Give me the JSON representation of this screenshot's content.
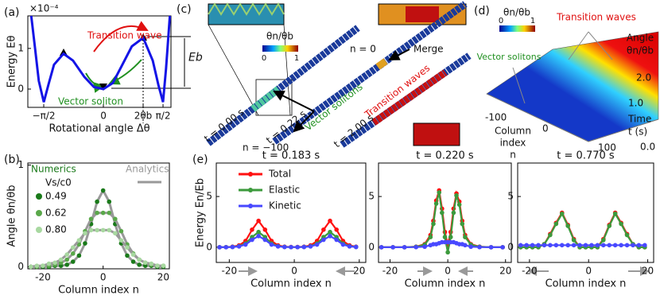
{
  "chart_data": [
    {
      "type": "line",
      "panel_label": "(a)",
      "ylabel": "Energy Eθ",
      "xlabel": "Rotational angle Δθ",
      "offset_text": "×10⁻⁴",
      "x": [
        -1.9,
        -1.8,
        -1.7,
        -1.57,
        -1.45,
        -1.3,
        -1.05,
        -0.8,
        -0.5,
        -0.25,
        0,
        0.25,
        0.5,
        0.75,
        1.05,
        1.3,
        1.45,
        1.57,
        1.65,
        1.75
      ],
      "series": [
        {
          "color": "#1414e6",
          "values": [
            1.8,
            1.0,
            0.2,
            -0.32,
            0.1,
            0.6,
            0.87,
            0.7,
            0.3,
            0.05,
            0,
            0.15,
            0.6,
            1.05,
            1.26,
            0.7,
            0.1,
            -0.32,
            0.5,
            1.8
          ]
        }
      ],
      "xlim": [
        -1.99,
        1.78
      ],
      "ylim": [
        -0.45,
        1.8
      ],
      "xticks": [
        {
          "value": -1.571,
          "label": "−π/2"
        },
        0,
        {
          "value": 1.047,
          "label": "2θb"
        },
        {
          "value": 1.571,
          "label": "π/2"
        }
      ],
      "yticks": [
        0,
        1
      ],
      "annotations": {
        "transition": "Transition wave",
        "soliton": "Vector soliton",
        "barrier": "Eb"
      }
    },
    {
      "type": "line",
      "panel_label": "(b)",
      "ylabel": "Angle θn/θb",
      "xlabel": "Column index n",
      "markers": true,
      "legend_title": "Vs/c0",
      "numerics_label": "Numerics",
      "analytics_label": "Analytics",
      "line_color": "#999999",
      "x": [
        -24,
        -22,
        -20,
        -18,
        -16,
        -14,
        -12,
        -10,
        -8,
        -6,
        -4,
        -2,
        0,
        2,
        4,
        6,
        8,
        10,
        12,
        14,
        16,
        18,
        20
      ],
      "series": [
        {
          "name": "0.49",
          "color": "#1a7a1a",
          "values": [
            0,
            0,
            0,
            0,
            0.01,
            0.01,
            0.02,
            0.05,
            0.11,
            0.23,
            0.42,
            0.64,
            0.75,
            0.64,
            0.42,
            0.23,
            0.11,
            0.05,
            0.02,
            0.01,
            0.01,
            0,
            0
          ]
        },
        {
          "name": "0.62",
          "color": "#5aa84a",
          "values": [
            0,
            0,
            0.01,
            0.01,
            0.02,
            0.04,
            0.07,
            0.13,
            0.22,
            0.35,
            0.47,
            0.53,
            0.53,
            0.53,
            0.47,
            0.35,
            0.22,
            0.13,
            0.07,
            0.04,
            0.02,
            0.01,
            0.01
          ]
        },
        {
          "name": "0.80",
          "color": "#a8d8a0",
          "values": [
            0,
            0.01,
            0.01,
            0.03,
            0.04,
            0.07,
            0.12,
            0.19,
            0.26,
            0.33,
            0.36,
            0.36,
            0.36,
            0.36,
            0.33,
            0.26,
            0.19,
            0.12,
            0.07,
            0.04,
            0.03,
            0.01,
            0.01
          ]
        }
      ],
      "xlim": [
        -25,
        22
      ],
      "ylim": [
        -0.02,
        1.02
      ],
      "xticks": [
        -20,
        0,
        20
      ],
      "yticks": [
        0,
        1
      ]
    },
    {
      "type": "line",
      "panel_label": "(e)",
      "title": "t = 0.183 s",
      "ylabel": "Energy En/Eb",
      "xlabel": "Column index n",
      "markers": true,
      "legend": true,
      "x": [
        -23,
        -21,
        -19,
        -17,
        -15,
        -13,
        -11,
        -9,
        -7,
        -5,
        -3,
        -1,
        1,
        3,
        5,
        7,
        9,
        11,
        13,
        15,
        17,
        19
      ],
      "series": [
        {
          "name": "Total",
          "color": "#ff1010",
          "values": [
            0,
            0.01,
            0.05,
            0.18,
            0.62,
            1.73,
            2.6,
            1.73,
            0.62,
            0.18,
            0.05,
            0.02,
            0.02,
            0.05,
            0.18,
            0.62,
            1.73,
            2.6,
            1.73,
            0.62,
            0.18,
            0.05
          ]
        },
        {
          "name": "Elastic",
          "color": "#3c9a3c",
          "values": [
            0,
            0.01,
            0.03,
            0.1,
            0.36,
            1.0,
            1.5,
            1.0,
            0.36,
            0.1,
            0.03,
            0.01,
            0.01,
            0.03,
            0.1,
            0.36,
            1.0,
            1.5,
            1.0,
            0.36,
            0.1,
            0.03
          ]
        },
        {
          "name": "Kinetic",
          "color": "#4848ff",
          "values": [
            0,
            0,
            0.02,
            0.08,
            0.26,
            0.73,
            1.1,
            0.73,
            0.26,
            0.08,
            0.02,
            0.01,
            0.01,
            0.02,
            0.08,
            0.26,
            0.73,
            1.1,
            0.73,
            0.26,
            0.08,
            0.02
          ]
        }
      ],
      "xlim": [
        -24,
        22
      ],
      "ylim": [
        -1.5,
        8.3
      ],
      "xticks": [
        -20,
        0,
        20
      ],
      "yticks": [
        0,
        5
      ]
    },
    {
      "type": "line",
      "title": "t = 0.220 s",
      "xlabel": "Column index n",
      "markers": true,
      "x": [
        -23,
        -19,
        -15,
        -11,
        -8,
        -6,
        -5,
        -4,
        -3,
        -2,
        -1,
        0,
        1,
        2,
        3,
        4,
        5,
        6,
        8,
        11,
        15,
        19
      ],
      "series": [
        {
          "name": "Total",
          "color": "#ff1010",
          "values": [
            0,
            0,
            0,
            0.05,
            0.3,
            1.2,
            2.6,
            4.6,
            5.6,
            3.8,
            1.5,
            0.2,
            1.5,
            3.8,
            5.3,
            4.5,
            2.6,
            1.2,
            0.3,
            0.05,
            0,
            0
          ]
        },
        {
          "name": "Elastic",
          "color": "#3c9a3c",
          "values": [
            0,
            0,
            0,
            0.04,
            0.25,
            1.0,
            2.3,
            4.3,
            5.4,
            3.4,
            1.0,
            -0.5,
            1.0,
            3.4,
            5.1,
            4.2,
            2.3,
            1.0,
            0.25,
            0.04,
            0,
            0
          ]
        },
        {
          "name": "Kinetic",
          "color": "#4848ff",
          "values": [
            0,
            0,
            0,
            0.01,
            0.05,
            0.2,
            0.3,
            0.3,
            0.4,
            0.5,
            0.5,
            0.5,
            0.5,
            0.5,
            0.4,
            0.3,
            0.3,
            0.2,
            0.05,
            0.01,
            0,
            0
          ]
        }
      ],
      "xlim": [
        -24,
        22
      ],
      "ylim": [
        -1.5,
        8.3
      ],
      "xticks": [
        -20,
        0,
        20
      ],
      "yticks": [
        0,
        5
      ]
    },
    {
      "type": "line",
      "title": "t = 0.770 s",
      "xlabel": "Column index n",
      "markers": true,
      "x": [
        -23,
        -21,
        -19,
        -17,
        -15,
        -13,
        -11,
        -9,
        -7,
        -5,
        -3,
        -1,
        1,
        3,
        5,
        7,
        9,
        11,
        13,
        15,
        17,
        19
      ],
      "series": [
        {
          "name": "Total",
          "color": "#ff1010",
          "values": [
            0,
            0,
            0,
            0,
            0.3,
            1.3,
            2.4,
            3.4,
            2.2,
            0.8,
            0,
            0,
            0,
            0,
            0.8,
            2.2,
            3.4,
            2.4,
            1.3,
            0.3,
            0,
            0
          ]
        },
        {
          "name": "Elastic",
          "color": "#3c9a3c",
          "values": [
            0,
            0,
            0,
            0,
            0.3,
            1.2,
            2.3,
            3.3,
            2.1,
            0.7,
            0,
            0,
            0,
            0,
            0.7,
            2.1,
            3.3,
            2.3,
            1.2,
            0.3,
            0,
            0
          ]
        },
        {
          "name": "Kinetic",
          "color": "#4848ff",
          "values": [
            0.2,
            0.2,
            0.2,
            0.2,
            0.2,
            0.2,
            0.2,
            0.2,
            0.2,
            0.2,
            0.2,
            0.2,
            0.2,
            0.2,
            0.2,
            0.2,
            0.2,
            0.2,
            0.2,
            0.2,
            0.2,
            0.2
          ]
        }
      ],
      "xlim": [
        -24,
        22
      ],
      "ylim": [
        -1.5,
        8.3
      ],
      "xticks": [
        -20,
        0,
        20
      ],
      "yticks": [
        0,
        5
      ]
    }
  ],
  "panels": {
    "c": {
      "label": "(c)",
      "colorbar_label": "θn/θb",
      "colorbar_ticks": [
        0,
        1
      ],
      "solitons": "Vector solitons",
      "merge": "Merge",
      "waves": "Transition waves",
      "n_zero": "n = 0",
      "n_start": "n = −100",
      "t1": "t = 0.00 s",
      "t2": "t = 0.22 s",
      "t3": "t = 2.00 s"
    },
    "d": {
      "label": "(d)",
      "colorbar_label": "θn/θb",
      "colorbar_ticks": [
        0,
        1
      ],
      "waves": "Transition waves",
      "solitons": "Vector solitons",
      "angle": "Angle",
      "angle_unit": "θn/θb",
      "time": "Time",
      "time_unit": "t (s)",
      "time_ticks": [
        "2.0",
        "1.0",
        "0.0"
      ],
      "column": "Column",
      "index": "index",
      "n": "n",
      "index_ticks": [
        -100,
        0,
        100
      ]
    }
  }
}
